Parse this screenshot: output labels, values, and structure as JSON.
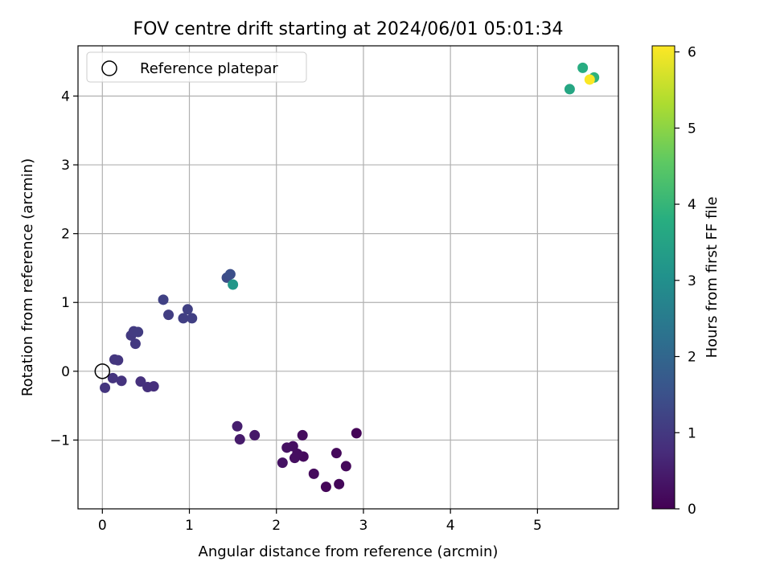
{
  "chart_data": {
    "type": "scatter",
    "title": "FOV centre drift starting at 2024/06/01 05:01:34",
    "xlabel": "Angular distance from reference (arcmin)",
    "ylabel": "Rotation from reference (arcmin)",
    "xlim": [
      -0.28,
      5.93
    ],
    "ylim": [
      -2.0,
      4.73
    ],
    "xticks": [
      0,
      1,
      2,
      3,
      4,
      5
    ],
    "yticks": [
      -1,
      0,
      1,
      2,
      3,
      4
    ],
    "xtick_labels": [
      "0",
      "1",
      "2",
      "3",
      "4",
      "5"
    ],
    "ytick_labels": [
      "−1",
      "0",
      "1",
      "2",
      "3",
      "4"
    ],
    "grid": true,
    "legend": {
      "placement": "top-left",
      "entries": [
        "Reference platepar"
      ]
    },
    "reference_point": {
      "x": 0,
      "y": 0,
      "label": "Reference platepar"
    },
    "colorbar": {
      "label": "Hours from first FF file",
      "range": [
        0,
        6.08
      ],
      "ticks": [
        0,
        1,
        2,
        3,
        4,
        5,
        6
      ],
      "tick_labels": [
        "0",
        "1",
        "2",
        "3",
        "4",
        "5",
        "6"
      ],
      "colormap": "viridis"
    },
    "points": [
      {
        "x": 2.92,
        "y": -0.9,
        "c": 0.05
      },
      {
        "x": 2.57,
        "y": -1.68,
        "c": 0.08
      },
      {
        "x": 2.72,
        "y": -1.64,
        "c": 0.1
      },
      {
        "x": 2.8,
        "y": -1.38,
        "c": 0.12
      },
      {
        "x": 2.69,
        "y": -1.19,
        "c": 0.14
      },
      {
        "x": 2.43,
        "y": -1.49,
        "c": 0.16
      },
      {
        "x": 2.31,
        "y": -1.24,
        "c": 0.18
      },
      {
        "x": 2.3,
        "y": -0.93,
        "c": 0.2
      },
      {
        "x": 2.24,
        "y": -1.2,
        "c": 0.22
      },
      {
        "x": 2.21,
        "y": -1.26,
        "c": 0.24
      },
      {
        "x": 2.19,
        "y": -1.09,
        "c": 0.26
      },
      {
        "x": 2.12,
        "y": -1.11,
        "c": 0.28
      },
      {
        "x": 2.07,
        "y": -1.33,
        "c": 0.3
      },
      {
        "x": 1.75,
        "y": -0.93,
        "c": 0.4
      },
      {
        "x": 1.58,
        "y": -0.99,
        "c": 0.45
      },
      {
        "x": 1.55,
        "y": -0.8,
        "c": 0.5
      },
      {
        "x": 0.59,
        "y": -0.22,
        "c": 0.8
      },
      {
        "x": 0.52,
        "y": -0.23,
        "c": 0.82
      },
      {
        "x": 0.44,
        "y": -0.15,
        "c": 0.85
      },
      {
        "x": 0.22,
        "y": -0.14,
        "c": 0.88
      },
      {
        "x": 0.12,
        "y": -0.1,
        "c": 0.9
      },
      {
        "x": 0.03,
        "y": -0.24,
        "c": 0.92
      },
      {
        "x": 0.18,
        "y": 0.16,
        "c": 0.95
      },
      {
        "x": 0.14,
        "y": 0.17,
        "c": 0.97
      },
      {
        "x": 0.38,
        "y": 0.4,
        "c": 1.0
      },
      {
        "x": 0.33,
        "y": 0.52,
        "c": 1.02
      },
      {
        "x": 0.36,
        "y": 0.58,
        "c": 1.04
      },
      {
        "x": 0.41,
        "y": 0.57,
        "c": 1.06
      },
      {
        "x": 0.76,
        "y": 0.82,
        "c": 1.1
      },
      {
        "x": 0.93,
        "y": 0.77,
        "c": 1.12
      },
      {
        "x": 1.03,
        "y": 0.77,
        "c": 1.14
      },
      {
        "x": 0.98,
        "y": 0.9,
        "c": 1.16
      },
      {
        "x": 0.7,
        "y": 1.04,
        "c": 1.18
      },
      {
        "x": 1.43,
        "y": 1.36,
        "c": 1.4
      },
      {
        "x": 1.47,
        "y": 1.41,
        "c": 1.45
      },
      {
        "x": 1.5,
        "y": 1.26,
        "c": 3.2
      },
      {
        "x": 5.37,
        "y": 4.1,
        "c": 3.6
      },
      {
        "x": 5.52,
        "y": 4.41,
        "c": 3.75
      },
      {
        "x": 5.65,
        "y": 4.27,
        "c": 3.9
      },
      {
        "x": 5.6,
        "y": 4.24,
        "c": 6.05
      }
    ]
  }
}
